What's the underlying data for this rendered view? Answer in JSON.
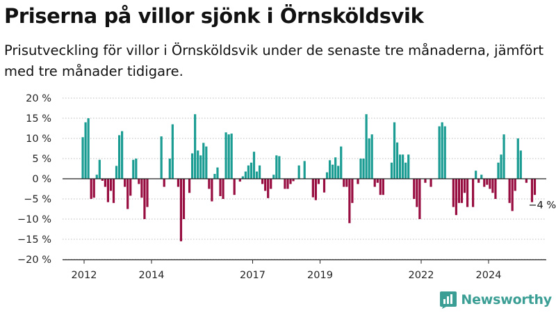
{
  "header": {
    "title": "Priserna på villor sjönk i Örnsköldsvik",
    "subtitle": "Prisutveckling för villor i Örnsköldsvik under de senaste tre månaderna, jämfört med tre månader tidigare."
  },
  "brand": {
    "name": "Newsworthy",
    "color": "#3a9e94",
    "icon": "bar-chart-logo-icon"
  },
  "colors": {
    "positive": "#1a9c93",
    "negative": "#980d40",
    "grid": "#bbbbbb",
    "zero_line": "#222222",
    "axis": "#222222"
  },
  "chart_data": {
    "type": "bar",
    "ylim": [
      -20,
      20
    ],
    "y_ticks": [
      20,
      15,
      10,
      5,
      0,
      -5,
      -10,
      -15,
      -20
    ],
    "y_tick_labels": [
      "20 %",
      "15 %",
      "10 %",
      "5 %",
      "0 %",
      "−5 %",
      "−10 %",
      "−15 %",
      "−20 %"
    ],
    "x_ticks": [
      2012,
      2014,
      2017,
      2019,
      2022,
      2024
    ],
    "x_start": 2011.96,
    "x_step": 0.0833,
    "grid": true,
    "annotation": {
      "text": "−4 %",
      "index": 158
    },
    "values": [
      10.3,
      14.0,
      15.0,
      -5.0,
      -4.7,
      1.0,
      4.7,
      -0.5,
      -2.0,
      -5.8,
      -3.0,
      -6.0,
      3.2,
      10.8,
      11.8,
      -2.0,
      -7.5,
      -4.2,
      4.7,
      5.0,
      -1.3,
      -4.7,
      -10.0,
      -7.0,
      0.0,
      0.0,
      0.0,
      0.0,
      10.5,
      -2.0,
      0.0,
      5.0,
      13.5,
      0.0,
      -2.0,
      -15.5,
      -10.0,
      0.0,
      -3.5,
      6.3,
      16.0,
      7.0,
      5.8,
      8.9,
      8.0,
      -2.5,
      -5.6,
      1.2,
      2.8,
      -4.3,
      -5.0,
      11.5,
      11.0,
      11.2,
      -4.0,
      0.0,
      -0.7,
      0.6,
      1.8,
      3.3,
      4.0,
      6.7,
      1.8,
      3.3,
      -1.3,
      -3.0,
      -4.8,
      -2.5,
      1.0,
      5.8,
      5.6,
      0.0,
      -2.5,
      -2.5,
      -1.3,
      -0.6,
      0.0,
      3.3,
      0.0,
      4.4,
      0.0,
      0.0,
      -4.6,
      -5.3,
      -1.3,
      0.0,
      -3.4,
      1.6,
      4.6,
      3.5,
      5.3,
      3.2,
      8.0,
      -2.0,
      -2.0,
      -11.0,
      -6.0,
      0.0,
      -1.3,
      5.0,
      5.0,
      16.0,
      10.0,
      11.0,
      -2.0,
      -1.0,
      -4.0,
      -4.0,
      0.0,
      0.0,
      4.0,
      14.0,
      9.0,
      6.0,
      6.0,
      4.0,
      6.0,
      0.0,
      -5.0,
      -7.0,
      -10.0,
      0.0,
      -1.0,
      0.0,
      -2.0,
      0.0,
      0.0,
      13.0,
      14.0,
      13.0,
      0.0,
      0.0,
      -7.0,
      -9.0,
      -6.0,
      -6.0,
      -3.5,
      -7.0,
      0.0,
      -7.0,
      2.0,
      -1.0,
      1.0,
      -2.0,
      -1.5,
      -2.5,
      -3.5,
      -5.0,
      4.0,
      6.0,
      11.0,
      0.0,
      -6.0,
      -8.0,
      -3.0,
      10.0,
      7.0,
      0.0,
      -1.0,
      0.0,
      -5.8,
      -4.0
    ]
  }
}
